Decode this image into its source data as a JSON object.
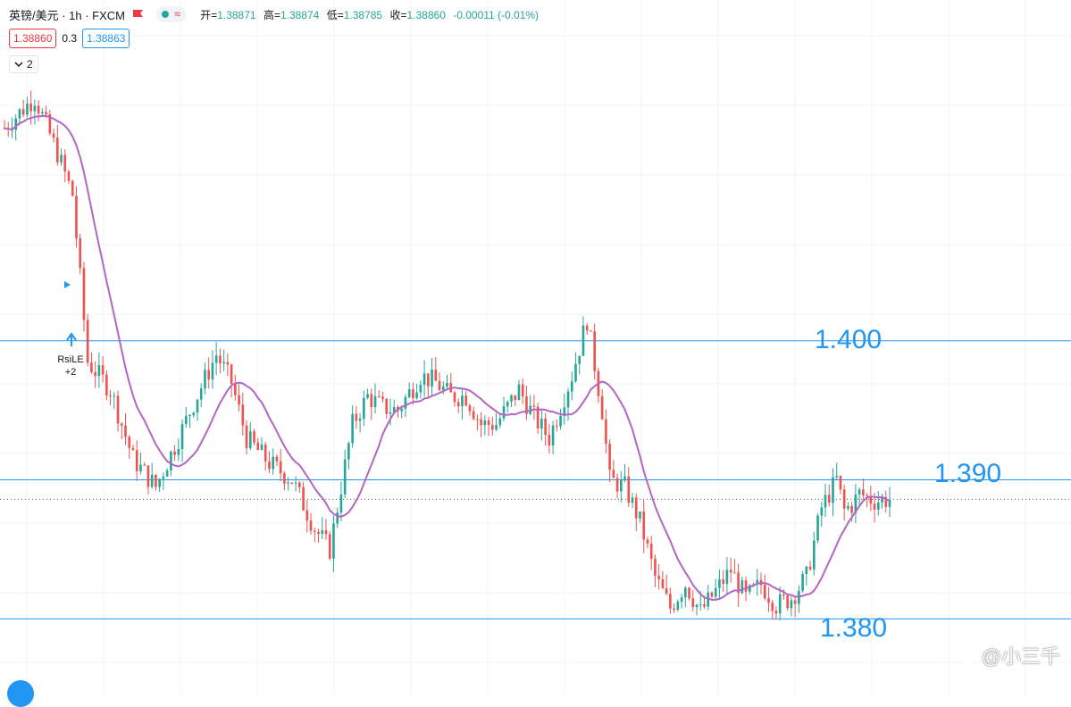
{
  "header": {
    "title": "英镑/美元 · 1h · FXCM",
    "ohlc": [
      {
        "label": "开",
        "value": "1.38871"
      },
      {
        "label": "高",
        "value": "1.38874"
      },
      {
        "label": "低",
        "value": "1.38785"
      },
      {
        "label": "收",
        "value": "1.38860"
      }
    ],
    "change": "-0.00011 (-0.01%)"
  },
  "quote": {
    "sell": "1.38860",
    "spread": "0.3",
    "buy": "1.38863"
  },
  "indicators_toggle": "2",
  "signal": {
    "name": "RsiLE",
    "count": "+2"
  },
  "watermark": "@小三千",
  "colors": {
    "up": "#26a69a",
    "down": "#ef5350",
    "ma": "#b565c4",
    "level": "#2196f3"
  },
  "chart_data": {
    "type": "candlestick",
    "symbol": "英镑/美元",
    "interval": "1h",
    "ylim": [
      1.3745,
      1.4245
    ],
    "level_lines": [
      {
        "value": 1.4,
        "label": "1.400"
      },
      {
        "value": 1.39,
        "label": "1.390"
      },
      {
        "value": 1.38,
        "label": "1.380"
      }
    ],
    "last_price": 1.3886,
    "waypoints": [
      [
        0,
        1.4153
      ],
      [
        8,
        1.4175
      ],
      [
        14,
        1.4135
      ],
      [
        18,
        1.4105
      ],
      [
        22,
        1.3985
      ],
      [
        28,
        1.3965
      ],
      [
        34,
        1.3915
      ],
      [
        40,
        1.3895
      ],
      [
        46,
        1.393
      ],
      [
        50,
        1.3955
      ],
      [
        56,
        1.399
      ],
      [
        60,
        1.397
      ],
      [
        64,
        1.393
      ],
      [
        70,
        1.3912
      ],
      [
        76,
        1.39
      ],
      [
        82,
        1.3865
      ],
      [
        86,
        1.385
      ],
      [
        88,
        1.388
      ],
      [
        92,
        1.394
      ],
      [
        96,
        1.396
      ],
      [
        100,
        1.3952
      ],
      [
        104,
        1.395
      ],
      [
        110,
        1.3975
      ],
      [
        114,
        1.397
      ],
      [
        118,
        1.396
      ],
      [
        122,
        1.396
      ],
      [
        126,
        1.394
      ],
      [
        130,
        1.394
      ],
      [
        136,
        1.3965
      ],
      [
        140,
        1.3945
      ],
      [
        144,
        1.393
      ],
      [
        150,
        1.3975
      ],
      [
        154,
        1.4015
      ],
      [
        158,
        1.395
      ],
      [
        160,
        1.39
      ],
      [
        164,
        1.3895
      ],
      [
        168,
        1.387
      ],
      [
        172,
        1.383
      ],
      [
        176,
        1.3808
      ],
      [
        180,
        1.3825
      ],
      [
        184,
        1.3805
      ],
      [
        188,
        1.382
      ],
      [
        192,
        1.3835
      ],
      [
        196,
        1.3815
      ],
      [
        200,
        1.3825
      ],
      [
        204,
        1.381
      ],
      [
        208,
        1.3815
      ],
      [
        212,
        1.383
      ],
      [
        216,
        1.388
      ],
      [
        220,
        1.39
      ],
      [
        222,
        1.3878
      ],
      [
        224,
        1.3882
      ],
      [
        226,
        1.389
      ],
      [
        230,
        1.3885
      ],
      [
        234,
        1.3886
      ]
    ]
  }
}
